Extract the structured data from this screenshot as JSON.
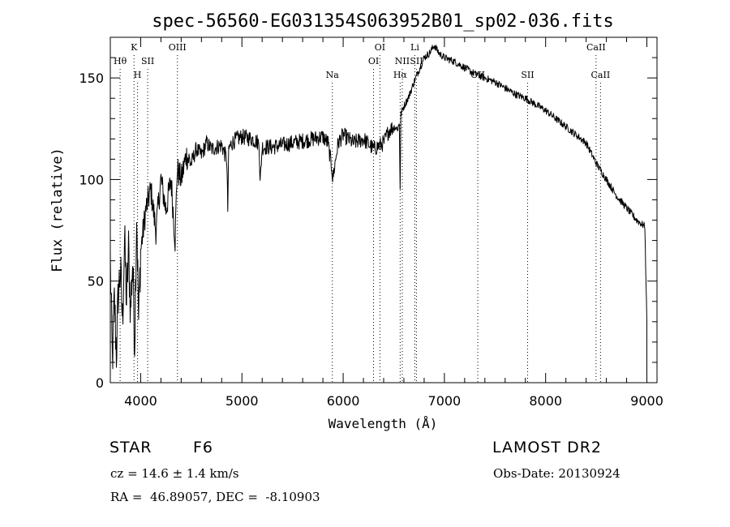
{
  "chart_data": {
    "type": "line",
    "title": "spec-56560-EG031354S063952B01_sp02-036.fits",
    "xlabel": "Wavelength (Å)",
    "ylabel": "Flux (relative)",
    "xlim": [
      3700,
      9100
    ],
    "ylim": [
      0,
      170
    ],
    "xticks": [
      4000,
      5000,
      6000,
      7000,
      8000,
      9000
    ],
    "yticks": [
      0,
      50,
      100,
      150
    ],
    "grid": false,
    "series": [
      {
        "x": [
          3700,
          3720,
          3740,
          3760,
          3780,
          3800,
          3820,
          3840,
          3860,
          3880,
          3900,
          3920,
          3940,
          3960,
          3980,
          4000,
          4050,
          4100,
          4150,
          4200,
          4250,
          4300,
          4340,
          4360,
          4400,
          4450,
          4500,
          4550,
          4600,
          4650,
          4700,
          4750,
          4800,
          4850,
          4860,
          4870,
          4900,
          4950,
          5000,
          5100,
          5170,
          5180,
          5200,
          5300,
          5400,
          5500,
          5600,
          5700,
          5800,
          5850,
          5890,
          5896,
          5950,
          6000,
          6100,
          6200,
          6300,
          6400,
          6450,
          6500,
          6540,
          6555,
          6563,
          6570,
          6590,
          6650,
          6700,
          6750,
          6800,
          6850,
          6900,
          6950,
          7000,
          7100,
          7200,
          7300,
          7400,
          7500,
          7600,
          7700,
          7800,
          7900,
          8000,
          8100,
          8200,
          8300,
          8400,
          8450,
          8500,
          8550,
          8600,
          8650,
          8700,
          8750,
          8800,
          8850,
          8900,
          8950,
          8980,
          9000
        ],
        "y": [
          60,
          10,
          40,
          15,
          45,
          55,
          30,
          70,
          40,
          65,
          35,
          60,
          20,
          85,
          30,
          65,
          85,
          95,
          75,
          100,
          85,
          100,
          70,
          105,
          100,
          112,
          108,
          115,
          112,
          118,
          115,
          116,
          117,
          110,
          85,
          115,
          118,
          120,
          121,
          120,
          118,
          98,
          116,
          116,
          117,
          118,
          119,
          120,
          121,
          118,
          105,
          100,
          118,
          122,
          118,
          120,
          115,
          118,
          124,
          126,
          125,
          128,
          96,
          132,
          135,
          141,
          148,
          154,
          160,
          162,
          166,
          162,
          160,
          158,
          155,
          152,
          150,
          148,
          145,
          142,
          140,
          137,
          134,
          130,
          126,
          122,
          118,
          113,
          108,
          104,
          100,
          96,
          92,
          89,
          86,
          83,
          80,
          78,
          77,
          30
        ]
      }
    ],
    "lines": [
      {
        "label": "Hθ",
        "x": 3797,
        "row": 2
      },
      {
        "label": "K",
        "x": 3934,
        "row": 1
      },
      {
        "label": "H",
        "x": 3969,
        "row": 3
      },
      {
        "label": "SII",
        "x": 4069,
        "row": 2
      },
      {
        "label": "OIII",
        "x": 4363,
        "row": 1
      },
      {
        "label": "Na",
        "x": 5893,
        "row": 3
      },
      {
        "label": "OI",
        "x": 6300,
        "row": 2
      },
      {
        "label": "OI",
        "x": 6363,
        "row": 1
      },
      {
        "label": "Hα",
        "x": 6563,
        "row": 3
      },
      {
        "label": "NII",
        "x": 6584,
        "row": 2
      },
      {
        "label": "Li",
        "x": 6708,
        "row": 1
      },
      {
        "label": "SII",
        "x": 6724,
        "row": 2
      },
      {
        "label": "OII",
        "x": 7330,
        "row": 3
      },
      {
        "label": "SII",
        "x": 7822,
        "row": 3
      },
      {
        "label": "CaII",
        "x": 8498,
        "row": 1
      },
      {
        "label": "CaII",
        "x": 8542,
        "row": 3
      }
    ]
  },
  "info": {
    "class_label": "STAR",
    "subclass": "F6",
    "survey": "LAMOST DR2",
    "cz": "cz = 14.6 ± 1.4 km/s",
    "obs_date": "Obs-Date: 20130924",
    "coords": "RA =  46.89057, DEC =  -8.10903"
  }
}
